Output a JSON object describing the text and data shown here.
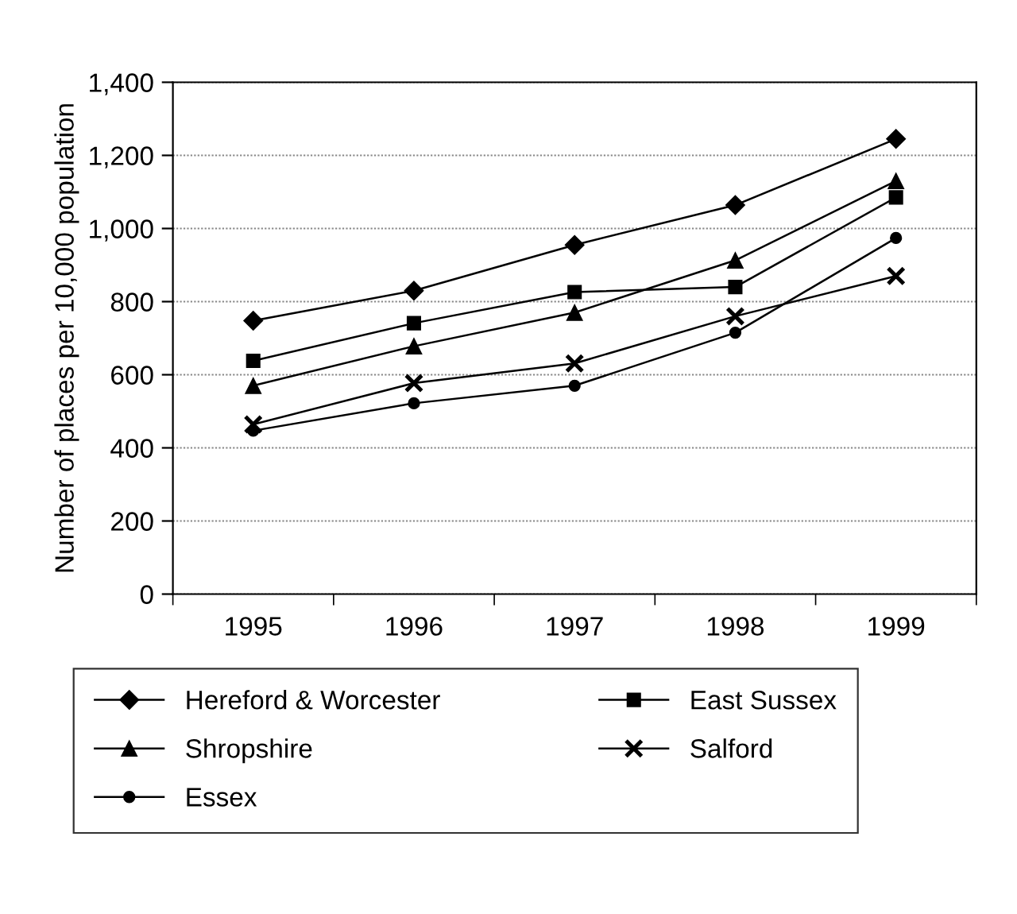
{
  "chart_data": {
    "type": "line",
    "ylabel": "Number of places per 10,000 population",
    "categories": [
      "1995",
      "1996",
      "1997",
      "1998",
      "1999"
    ],
    "series": [
      {
        "name": "Hereford & Worcester",
        "color": "#000000",
        "marker": "diamond",
        "values": [
          748,
          830,
          955,
          1064,
          1245
        ]
      },
      {
        "name": "East Sussex",
        "color": "#000000",
        "marker": "square",
        "values": [
          638,
          741,
          826,
          840,
          1085
        ]
      },
      {
        "name": "Shropshire",
        "color": "#000000",
        "marker": "triangle",
        "values": [
          570,
          678,
          770,
          913,
          1130
        ]
      },
      {
        "name": "Salford",
        "color": "#000000",
        "marker": "cross",
        "values": [
          464,
          577,
          631,
          760,
          870
        ]
      },
      {
        "name": "Essex",
        "color": "#000000",
        "marker": "circle",
        "values": [
          447,
          522,
          570,
          715,
          974
        ]
      }
    ],
    "ylim": [
      0,
      1400
    ],
    "yticks": [
      {
        "value": 0,
        "label": "0"
      },
      {
        "value": 200,
        "label": "200"
      },
      {
        "value": 400,
        "label": "400"
      },
      {
        "value": 600,
        "label": "600"
      },
      {
        "value": 800,
        "label": "800"
      },
      {
        "value": 1000,
        "label": "1,000"
      },
      {
        "value": 1200,
        "label": "1,200"
      },
      {
        "value": 1400,
        "label": "1,400"
      }
    ],
    "grid": "y",
    "legend": "bottom",
    "line_style": "solid"
  }
}
